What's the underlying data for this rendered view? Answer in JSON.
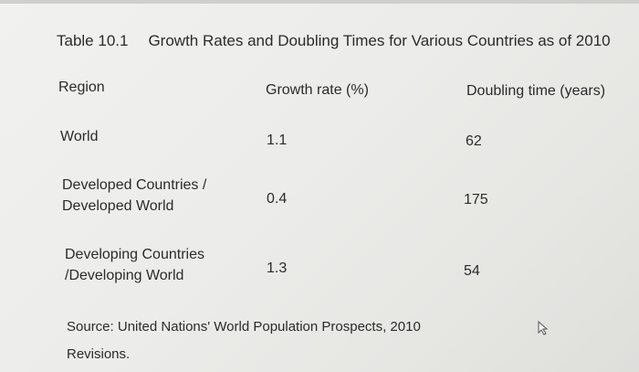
{
  "caption": {
    "table_number": "Table 10.1",
    "title": "Growth Rates and Doubling Times for Various Countries as of 2010"
  },
  "table": {
    "headers": [
      "Region",
      "Growth rate (%)",
      "Doubling time (years)"
    ],
    "rows": [
      {
        "region": "World",
        "growth_rate": "1.1",
        "doubling_time": "62"
      },
      {
        "region": "Developed Countries /\nDeveloped World",
        "growth_rate": "0.4",
        "doubling_time": "175"
      },
      {
        "region": "Developing Countries\n/Developing World",
        "growth_rate": "1.3",
        "doubling_time": "54"
      }
    ]
  },
  "source": "Source: United Nations' World Population Prospects, 2010 Revisions.",
  "icons": {
    "cursor": "mouse-pointer-icon"
  }
}
